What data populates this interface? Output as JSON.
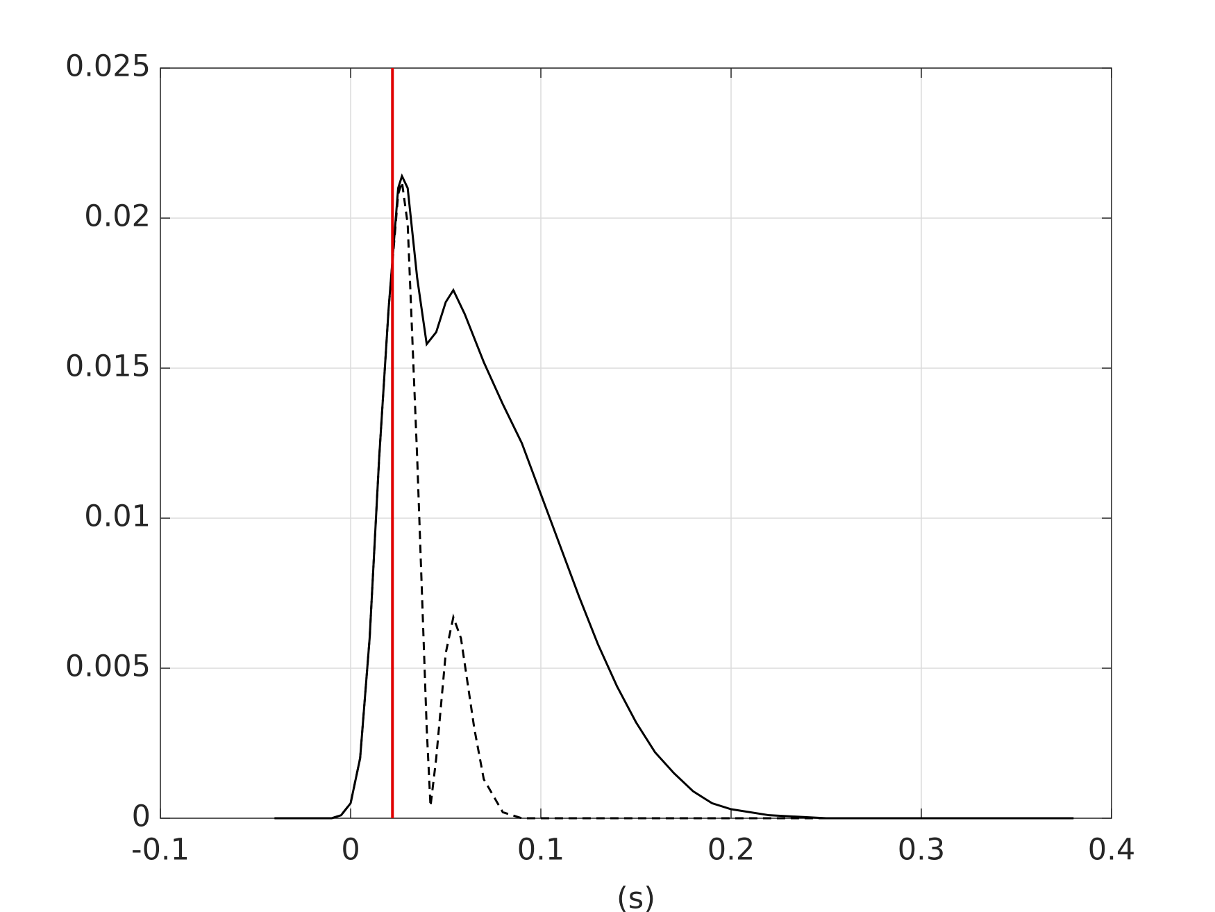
{
  "chart_data": {
    "type": "line",
    "xlabel": "(s)",
    "xlim": [
      -0.1,
      0.4
    ],
    "xticks": [
      -0.1,
      0,
      0.1,
      0.2,
      0.3,
      0.4
    ],
    "ylim": [
      0,
      0.025
    ],
    "yticks": [
      0,
      0.005,
      0.01,
      0.015,
      0.02,
      0.025
    ],
    "grid": true,
    "series": [
      {
        "color": "#000000",
        "dash": false,
        "x": [
          -0.04,
          -0.01,
          -0.005,
          0,
          0.005,
          0.01,
          0.015,
          0.02,
          0.025,
          0.027,
          0.03,
          0.035,
          0.04,
          0.045,
          0.05,
          0.054,
          0.06,
          0.07,
          0.08,
          0.09,
          0.1,
          0.11,
          0.12,
          0.13,
          0.14,
          0.15,
          0.16,
          0.17,
          0.18,
          0.19,
          0.2,
          0.22,
          0.25,
          0.3,
          0.38
        ],
        "values": [
          0,
          0,
          0.0001,
          0.0005,
          0.002,
          0.006,
          0.012,
          0.017,
          0.021,
          0.0214,
          0.021,
          0.018,
          0.0158,
          0.0162,
          0.0172,
          0.0176,
          0.0168,
          0.0152,
          0.0138,
          0.0125,
          0.0108,
          0.0091,
          0.0074,
          0.0058,
          0.0044,
          0.0032,
          0.0022,
          0.0015,
          0.0009,
          0.0005,
          0.0003,
          0.0001,
          0,
          0,
          0
        ]
      },
      {
        "color": "#000000",
        "dash": true,
        "x": [
          -0.04,
          -0.01,
          -0.005,
          0,
          0.005,
          0.01,
          0.015,
          0.02,
          0.025,
          0.027,
          0.03,
          0.035,
          0.04,
          0.042,
          0.045,
          0.05,
          0.054,
          0.058,
          0.065,
          0.07,
          0.08,
          0.09,
          0.2,
          0.38
        ],
        "values": [
          0,
          0,
          0.0001,
          0.0005,
          0.002,
          0.006,
          0.012,
          0.017,
          0.0208,
          0.0212,
          0.0198,
          0.012,
          0.003,
          0.0004,
          0.002,
          0.0055,
          0.0067,
          0.006,
          0.003,
          0.0013,
          0.0002,
          0,
          0,
          0
        ]
      }
    ],
    "vline": {
      "x": 0.022,
      "color": "#e00000"
    }
  }
}
